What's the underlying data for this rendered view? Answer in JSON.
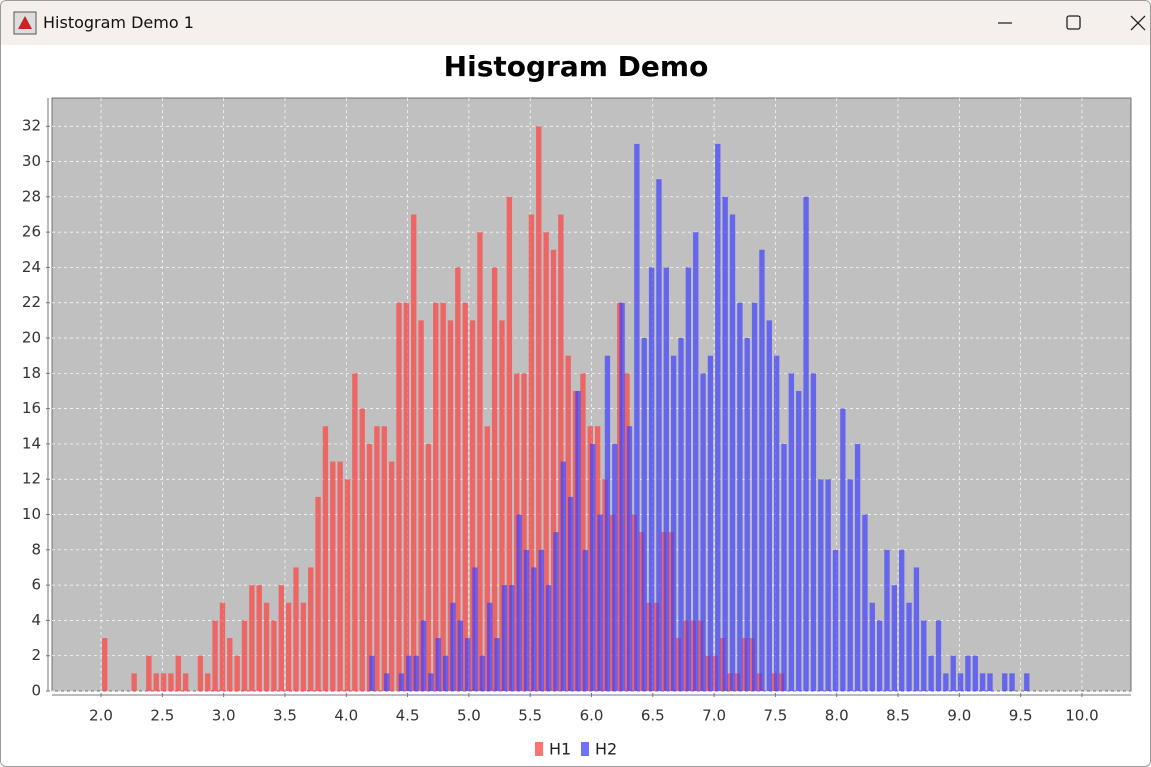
{
  "window": {
    "title": "Histogram Demo 1"
  },
  "chart_data": {
    "type": "histogram",
    "title": "Histogram Demo",
    "series": [
      {
        "name": "H1",
        "color": "#ff4040",
        "bins": [
          2.0,
          2.06,
          2.12,
          2.18,
          2.24,
          2.3,
          2.36,
          2.42,
          2.48,
          2.54,
          2.6,
          2.66,
          2.72,
          2.78,
          2.84,
          2.9,
          2.96,
          3.02,
          3.08,
          3.14,
          3.2,
          3.26,
          3.32,
          3.38,
          3.44,
          3.5,
          3.56,
          3.62,
          3.68,
          3.74,
          3.8,
          3.86,
          3.92,
          3.98,
          4.04,
          4.1,
          4.16,
          4.22,
          4.28,
          4.34,
          4.4,
          4.46,
          4.52,
          4.58,
          4.64,
          4.7,
          4.76,
          4.82,
          4.88,
          4.94,
          5.0,
          5.06,
          5.12,
          5.18,
          5.24,
          5.3,
          5.36,
          5.42,
          5.48,
          5.54,
          5.6,
          5.66,
          5.72,
          5.78,
          5.84,
          5.9,
          5.96,
          6.02,
          6.08,
          6.14,
          6.2,
          6.26,
          6.32,
          6.38,
          6.44,
          6.5,
          6.56,
          6.62,
          6.68,
          6.74,
          6.8,
          6.86,
          6.92,
          6.98,
          7.04,
          7.1,
          7.16,
          7.22,
          7.28,
          7.34,
          7.4,
          7.46,
          7.52,
          7.58,
          7.64,
          7.7,
          7.76,
          7.82,
          7.88,
          7.94,
          8.0
        ],
        "values": [
          3,
          0,
          0,
          0,
          1,
          0,
          2,
          1,
          1,
          1,
          2,
          1,
          0,
          2,
          1,
          4,
          5,
          3,
          2,
          4,
          6,
          6,
          5,
          4,
          6,
          5,
          7,
          5,
          7,
          11,
          15,
          13,
          13,
          12,
          18,
          16,
          14,
          15,
          15,
          13,
          22,
          22,
          27,
          21,
          14,
          22,
          22,
          21,
          24,
          22,
          21,
          26,
          15,
          24,
          21,
          28,
          18,
          18,
          27,
          32,
          26,
          25,
          27,
          19,
          17,
          18,
          15,
          15,
          12,
          10,
          22,
          18,
          10,
          9,
          5,
          5,
          9,
          9,
          3,
          4,
          4,
          4,
          2,
          2,
          3,
          1,
          1,
          3,
          3,
          1,
          0,
          1,
          1,
          0,
          0,
          0,
          0,
          0,
          0,
          0
        ]
      },
      {
        "name": "H2",
        "color": "#4040ff",
        "bins": [
          4.0,
          4.06,
          4.12,
          4.18,
          4.24,
          4.3,
          4.36,
          4.42,
          4.48,
          4.54,
          4.6,
          4.66,
          4.72,
          4.78,
          4.84,
          4.9,
          4.96,
          5.02,
          5.08,
          5.14,
          5.2,
          5.26,
          5.32,
          5.38,
          5.44,
          5.5,
          5.56,
          5.62,
          5.68,
          5.74,
          5.8,
          5.86,
          5.92,
          5.98,
          6.04,
          6.1,
          6.16,
          6.22,
          6.28,
          6.34,
          6.4,
          6.46,
          6.52,
          6.58,
          6.64,
          6.7,
          6.76,
          6.82,
          6.88,
          6.94,
          7.0,
          7.06,
          7.12,
          7.18,
          7.24,
          7.3,
          7.36,
          7.42,
          7.48,
          7.54,
          7.6,
          7.66,
          7.72,
          7.78,
          7.84,
          7.9,
          7.96,
          8.02,
          8.08,
          8.14,
          8.2,
          8.26,
          8.32,
          8.38,
          8.44,
          8.5,
          8.56,
          8.62,
          8.68,
          8.74,
          8.8,
          8.86,
          8.92,
          8.98,
          9.04,
          9.1,
          9.16,
          9.22,
          9.28,
          9.34,
          9.4,
          9.46,
          9.52,
          9.58,
          9.64,
          9.7,
          9.76,
          9.82,
          9.88,
          9.94,
          10.0
        ],
        "values": [
          0,
          0,
          0,
          2,
          0,
          1,
          0,
          1,
          2,
          2,
          4,
          1,
          3,
          2,
          5,
          4,
          3,
          7,
          2,
          5,
          3,
          6,
          6,
          10,
          8,
          7,
          8,
          6,
          9,
          13,
          11,
          17,
          8,
          14,
          10,
          19,
          14,
          22,
          15,
          31,
          20,
          24,
          29,
          24,
          19,
          20,
          24,
          26,
          18,
          19,
          31,
          28,
          27,
          22,
          20,
          22,
          25,
          21,
          19,
          14,
          18,
          17,
          28,
          18,
          12,
          12,
          8,
          16,
          12,
          14,
          10,
          5,
          4,
          8,
          6,
          8,
          5,
          7,
          4,
          2,
          4,
          1,
          2,
          1,
          2,
          2,
          1,
          1,
          0,
          1,
          1,
          0,
          1,
          0,
          0,
          0,
          0,
          0,
          0,
          0
        ]
      }
    ],
    "xlim": [
      1.6,
      10.4
    ],
    "xticks": [
      {
        "value": 2,
        "label": "2.0"
      },
      2.5,
      {
        "value": 3,
        "label": "3.0"
      },
      3.5,
      {
        "value": 4,
        "label": "4.0"
      },
      4.5,
      {
        "value": 5,
        "label": "5.0"
      },
      5.5,
      {
        "value": 6,
        "label": "6.0"
      },
      6.5,
      {
        "value": 7,
        "label": "7.0"
      },
      7.5,
      {
        "value": 8,
        "label": "8.0"
      },
      8.5,
      {
        "value": 9,
        "label": "9.0"
      },
      9.5,
      {
        "value": 10,
        "label": "10.0"
      }
    ],
    "ylim": [
      0,
      33.6
    ],
    "yticks": [
      0,
      2,
      4,
      6,
      8,
      10,
      12,
      14,
      16,
      18,
      20,
      22,
      24,
      26,
      28,
      30,
      32
    ],
    "grid": true,
    "legend": "bottom"
  }
}
